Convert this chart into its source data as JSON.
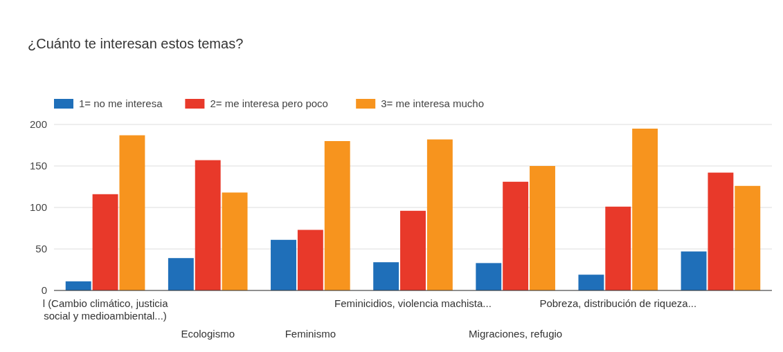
{
  "chart_data": {
    "type": "bar",
    "title": "¿Cuánto te interesan estos temas?",
    "categories": [
      "l (Cambio climático, justicia social y medioambiental...)",
      "Ecologismo",
      "Feminismo",
      "Feminicidios, violencia machista...",
      "Migraciones, refugio",
      "Pobreza, distribución de riqueza...",
      null
    ],
    "series": [
      {
        "name": "1= no me interesa",
        "color": "#1f6fb9",
        "values": [
          11,
          39,
          61,
          34,
          33,
          19,
          47
        ]
      },
      {
        "name": "2= me interesa pero poco",
        "color": "#e8392a",
        "values": [
          116,
          157,
          73,
          96,
          131,
          101,
          142
        ]
      },
      {
        "name": "3= me interesa mucho",
        "color": "#f7941e",
        "values": [
          187,
          118,
          180,
          182,
          150,
          195,
          126
        ]
      }
    ],
    "ylim": [
      0,
      200
    ],
    "yticks": [
      0,
      50,
      100,
      150,
      200
    ],
    "grid": "y",
    "legend": "top left"
  }
}
